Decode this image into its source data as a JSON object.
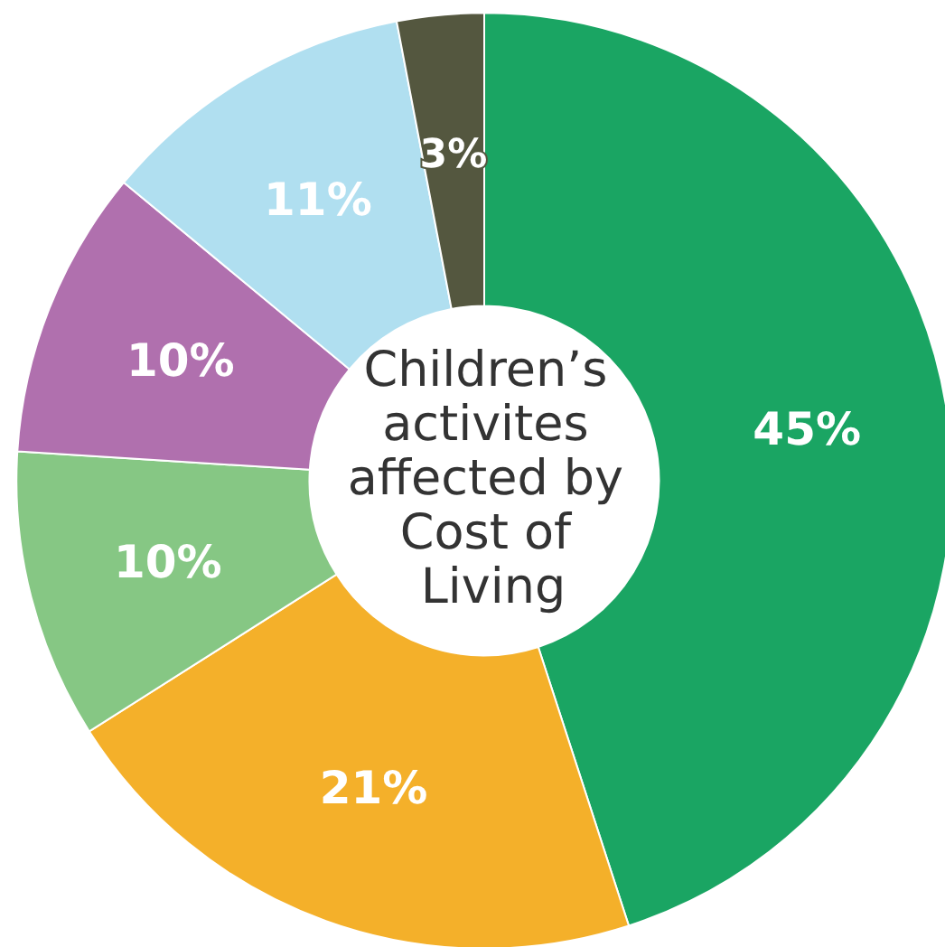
{
  "chart_data": {
    "type": "donut",
    "title": "Children’s activites affected by Cost of Living",
    "categories": [
      null,
      null,
      null,
      null,
      null,
      null
    ],
    "values": [
      45,
      21,
      10,
      10,
      11,
      3
    ],
    "value_labels": [
      "45%",
      "21%",
      "10%",
      "10%",
      "11%",
      "3%"
    ],
    "colors": [
      "#1aa563",
      "#f4b02a",
      "#86c784",
      "#b070ae",
      "#b0dff0",
      "#54573f"
    ]
  }
}
